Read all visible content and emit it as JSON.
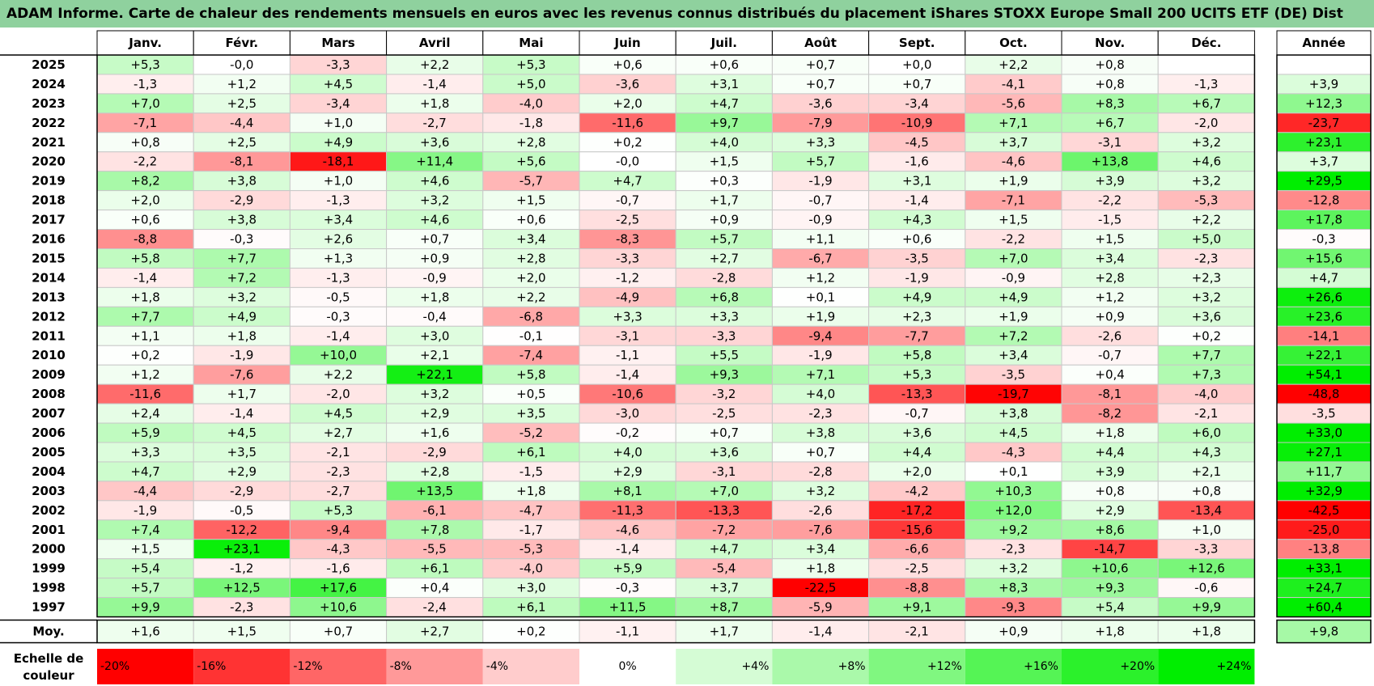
{
  "title": "ADAM Informe. Carte de chaleur des rendements mensuels en euros avec les revenus connus distribués du placement iShares STOXX Europe Small 200 UCITS ETF (DE) Dist",
  "chart_data": {
    "type": "heatmap",
    "months": [
      "Janv.",
      "Févr.",
      "Mars",
      "Avril",
      "Mai",
      "Juin",
      "Juil.",
      "Août",
      "Sept.",
      "Oct.",
      "Nov.",
      "Déc."
    ],
    "year_header": "Année",
    "rows": [
      {
        "year": "2025",
        "values": [
          "+5,3",
          "-0,0",
          "-3,3",
          "+2,2",
          "+5,3",
          "+0,6",
          "+0,6",
          "+0,7",
          "+0,0",
          "+2,2",
          "+0,8",
          ""
        ],
        "annual": ""
      },
      {
        "year": "2024",
        "values": [
          "-1,3",
          "+1,2",
          "+4,5",
          "-1,4",
          "+5,0",
          "-3,6",
          "+3,1",
          "+0,7",
          "+0,7",
          "-4,1",
          "+0,8",
          "-1,3"
        ],
        "annual": "+3,9"
      },
      {
        "year": "2023",
        "values": [
          "+7,0",
          "+2,5",
          "-3,4",
          "+1,8",
          "-4,0",
          "+2,0",
          "+4,7",
          "-3,6",
          "-3,4",
          "-5,6",
          "+8,3",
          "+6,7"
        ],
        "annual": "+12,3"
      },
      {
        "year": "2022",
        "values": [
          "-7,1",
          "-4,4",
          "+1,0",
          "-2,7",
          "-1,8",
          "-11,6",
          "+9,7",
          "-7,9",
          "-10,9",
          "+7,1",
          "+6,7",
          "-2,0"
        ],
        "annual": "-23,7"
      },
      {
        "year": "2021",
        "values": [
          "+0,8",
          "+2,5",
          "+4,9",
          "+3,6",
          "+2,8",
          "+0,2",
          "+4,0",
          "+3,3",
          "-4,5",
          "+3,7",
          "-3,1",
          "+3,2"
        ],
        "annual": "+23,1"
      },
      {
        "year": "2020",
        "values": [
          "-2,2",
          "-8,1",
          "-18,1",
          "+11,4",
          "+5,6",
          "-0,0",
          "+1,5",
          "+5,7",
          "-1,6",
          "-4,6",
          "+13,8",
          "+4,6"
        ],
        "annual": "+3,7"
      },
      {
        "year": "2019",
        "values": [
          "+8,2",
          "+3,8",
          "+1,0",
          "+4,6",
          "-5,7",
          "+4,7",
          "+0,3",
          "-1,9",
          "+3,1",
          "+1,9",
          "+3,9",
          "+3,2"
        ],
        "annual": "+29,5"
      },
      {
        "year": "2018",
        "values": [
          "+2,0",
          "-2,9",
          "-1,3",
          "+3,2",
          "+1,5",
          "-0,7",
          "+1,7",
          "-0,7",
          "-1,4",
          "-7,1",
          "-2,2",
          "-5,3"
        ],
        "annual": "-12,8"
      },
      {
        "year": "2017",
        "values": [
          "+0,6",
          "+3,8",
          "+3,4",
          "+4,6",
          "+0,6",
          "-2,5",
          "+0,9",
          "-0,9",
          "+4,3",
          "+1,5",
          "-1,5",
          "+2,2"
        ],
        "annual": "+17,8"
      },
      {
        "year": "2016",
        "values": [
          "-8,8",
          "-0,3",
          "+2,6",
          "+0,7",
          "+3,4",
          "-8,3",
          "+5,7",
          "+1,1",
          "+0,6",
          "-2,2",
          "+1,5",
          "+5,0"
        ],
        "annual": "-0,3"
      },
      {
        "year": "2015",
        "values": [
          "+5,8",
          "+7,7",
          "+1,3",
          "+0,9",
          "+2,8",
          "-3,3",
          "+2,7",
          "-6,7",
          "-3,5",
          "+7,0",
          "+3,4",
          "-2,3"
        ],
        "annual": "+15,6"
      },
      {
        "year": "2014",
        "values": [
          "-1,4",
          "+7,2",
          "-1,3",
          "-0,9",
          "+2,0",
          "-1,2",
          "-2,8",
          "+1,2",
          "-1,9",
          "-0,9",
          "+2,8",
          "+2,3"
        ],
        "annual": "+4,7"
      },
      {
        "year": "2013",
        "values": [
          "+1,8",
          "+3,2",
          "-0,5",
          "+1,8",
          "+2,2",
          "-4,9",
          "+6,8",
          "+0,1",
          "+4,9",
          "+4,9",
          "+1,2",
          "+3,2"
        ],
        "annual": "+26,6"
      },
      {
        "year": "2012",
        "values": [
          "+7,7",
          "+4,9",
          "-0,3",
          "-0,4",
          "-6,8",
          "+3,3",
          "+3,3",
          "+1,9",
          "+2,3",
          "+1,9",
          "+0,9",
          "+3,6"
        ],
        "annual": "+23,6"
      },
      {
        "year": "2011",
        "values": [
          "+1,1",
          "+1,8",
          "-1,4",
          "+3,0",
          "-0,1",
          "-3,1",
          "-3,3",
          "-9,4",
          "-7,7",
          "+7,2",
          "-2,6",
          "+0,2"
        ],
        "annual": "-14,1"
      },
      {
        "year": "2010",
        "values": [
          "+0,2",
          "-1,9",
          "+10,0",
          "+2,1",
          "-7,4",
          "-1,1",
          "+5,5",
          "-1,9",
          "+5,8",
          "+3,4",
          "-0,7",
          "+7,7"
        ],
        "annual": "+22,1"
      },
      {
        "year": "2009",
        "values": [
          "+1,2",
          "-7,6",
          "+2,2",
          "+22,1",
          "+5,8",
          "-1,4",
          "+9,3",
          "+7,1",
          "+5,3",
          "-3,5",
          "+0,4",
          "+7,3"
        ],
        "annual": "+54,1"
      },
      {
        "year": "2008",
        "values": [
          "-11,6",
          "+1,7",
          "-2,0",
          "+3,2",
          "+0,5",
          "-10,6",
          "-3,2",
          "+4,0",
          "-13,3",
          "-19,7",
          "-8,1",
          "-4,0"
        ],
        "annual": "-48,8"
      },
      {
        "year": "2007",
        "values": [
          "+2,4",
          "-1,4",
          "+4,5",
          "+2,9",
          "+3,5",
          "-3,0",
          "-2,5",
          "-2,3",
          "-0,7",
          "+3,8",
          "-8,2",
          "-2,1"
        ],
        "annual": "-3,5"
      },
      {
        "year": "2006",
        "values": [
          "+5,9",
          "+4,5",
          "+2,7",
          "+1,6",
          "-5,2",
          "-0,2",
          "+0,7",
          "+3,8",
          "+3,6",
          "+4,5",
          "+1,8",
          "+6,0"
        ],
        "annual": "+33,0"
      },
      {
        "year": "2005",
        "values": [
          "+3,3",
          "+3,5",
          "-2,1",
          "-2,9",
          "+6,1",
          "+4,0",
          "+3,6",
          "+0,7",
          "+4,4",
          "-4,3",
          "+4,4",
          "+4,3"
        ],
        "annual": "+27,1"
      },
      {
        "year": "2004",
        "values": [
          "+4,7",
          "+2,9",
          "-2,3",
          "+2,8",
          "-1,5",
          "+2,9",
          "-3,1",
          "-2,8",
          "+2,0",
          "+0,1",
          "+3,9",
          "+2,1"
        ],
        "annual": "+11,7"
      },
      {
        "year": "2003",
        "values": [
          "-4,4",
          "-2,9",
          "-2,7",
          "+13,5",
          "+1,8",
          "+8,1",
          "+7,0",
          "+3,2",
          "-4,2",
          "+10,3",
          "+0,8",
          "+0,8"
        ],
        "annual": "+32,9"
      },
      {
        "year": "2002",
        "values": [
          "-1,9",
          "-0,5",
          "+5,3",
          "-6,1",
          "-4,7",
          "-11,3",
          "-13,3",
          "-2,6",
          "-17,2",
          "+12,0",
          "+2,9",
          "-13,4"
        ],
        "annual": "-42,5"
      },
      {
        "year": "2001",
        "values": [
          "+7,4",
          "-12,2",
          "-9,4",
          "+7,8",
          "-1,7",
          "-4,6",
          "-7,2",
          "-7,6",
          "-15,6",
          "+9,2",
          "+8,6",
          "+1,0"
        ],
        "annual": "-25,0"
      },
      {
        "year": "2000",
        "values": [
          "+1,5",
          "+23,1",
          "-4,3",
          "-5,5",
          "-5,3",
          "-1,4",
          "+4,7",
          "+3,4",
          "-6,6",
          "-2,3",
          "-14,7",
          "-3,3"
        ],
        "annual": "-13,8"
      },
      {
        "year": "1999",
        "values": [
          "+5,4",
          "-1,2",
          "-1,6",
          "+6,1",
          "-4,0",
          "+5,9",
          "-5,4",
          "+1,8",
          "-2,5",
          "+3,2",
          "+10,6",
          "+12,6"
        ],
        "annual": "+33,1"
      },
      {
        "year": "1998",
        "values": [
          "+5,7",
          "+12,5",
          "+17,6",
          "+0,4",
          "+3,0",
          "-0,3",
          "+3,7",
          "-22,5",
          "-8,8",
          "+8,3",
          "+9,3",
          "-0,6"
        ],
        "annual": "+24,7"
      },
      {
        "year": "1997",
        "values": [
          "+9,9",
          "-2,3",
          "+10,6",
          "-2,4",
          "+6,1",
          "+11,5",
          "+8,7",
          "-5,9",
          "+9,1",
          "-9,3",
          "+5,4",
          "+9,9"
        ],
        "annual": "+60,4"
      }
    ],
    "average": {
      "label": "Moy.",
      "values": [
        "+1,6",
        "+1,5",
        "+0,7",
        "+2,7",
        "+0,2",
        "-1,1",
        "+1,7",
        "-1,4",
        "-2,1",
        "+0,9",
        "+1,8",
        "+1,8"
      ],
      "annual": "+9,8"
    },
    "scale": {
      "label_line1": "Echelle de",
      "label_line2": "couleur",
      "ticks": [
        "-20%",
        "-16%",
        "-12%",
        "-8%",
        "-4%",
        "0%",
        "+4%",
        "+8%",
        "+12%",
        "+16%",
        "+20%",
        "+24%"
      ]
    },
    "colors": {
      "title_bg": "#8fd19e",
      "negative": "#ff0000",
      "positive": "#00ee00",
      "neutral": "#ffffff",
      "border": "#bfbfbf"
    }
  }
}
